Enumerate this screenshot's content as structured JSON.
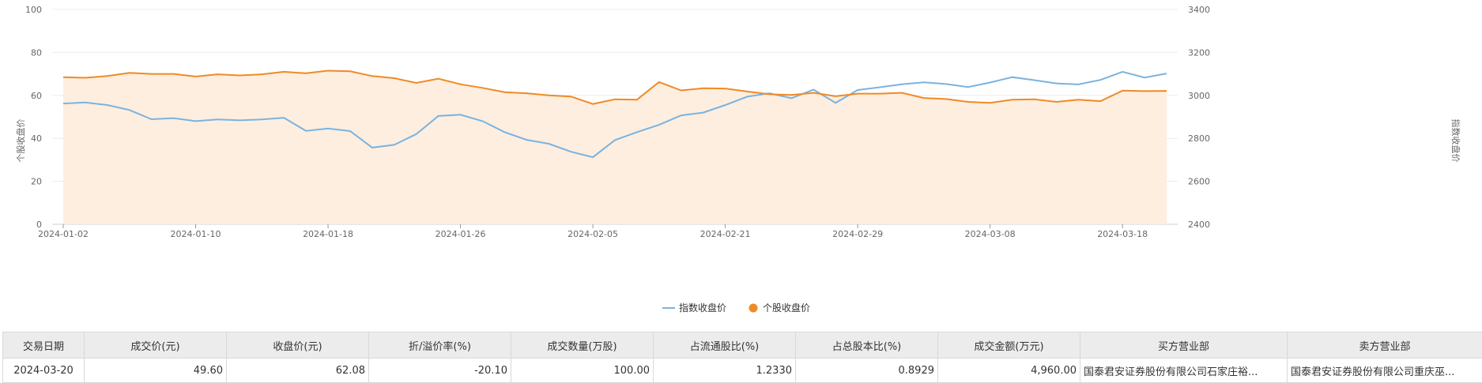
{
  "chart_data": {
    "type": "line",
    "left_axis": {
      "label": "个股收盘价",
      "ylim": [
        0,
        100
      ],
      "ticks": [
        "100",
        "80",
        "60",
        "40",
        "20",
        "0"
      ]
    },
    "right_axis": {
      "label": "指数收盘价",
      "ylim": [
        2400,
        3400
      ],
      "ticks": [
        "3400",
        "3200",
        "3000",
        "2800",
        "2600",
        "2400"
      ]
    },
    "x_tick_labels": [
      "2024-01-02",
      "2024-01-10",
      "2024-01-18",
      "2024-01-26",
      "2024-02-05",
      "2024-02-21",
      "2024-02-29",
      "2024-03-08",
      "2024-03-18"
    ],
    "series": [
      {
        "name": "指数收盘价",
        "axis": "right",
        "color": "#7ab3e0",
        "values": [
          2962,
          2967,
          2955,
          2932,
          2889,
          2894,
          2880,
          2888,
          2884,
          2888,
          2896,
          2835,
          2846,
          2834,
          2757,
          2770,
          2820,
          2904,
          2910,
          2880,
          2829,
          2793,
          2775,
          2738,
          2712,
          2792,
          2829,
          2863,
          2907,
          2920,
          2955,
          2994,
          3010,
          2987,
          3027,
          2965,
          3025,
          3038,
          3052,
          3061,
          3053,
          3039,
          3060,
          3085,
          3071,
          3056,
          3051,
          3072,
          3110,
          3083,
          3102
        ]
      },
      {
        "name": "个股收盘价",
        "axis": "left",
        "color": "#f08a24",
        "values": [
          68.5,
          68.2,
          69.0,
          70.5,
          70.0,
          70.0,
          68.8,
          69.8,
          69.3,
          69.8,
          71.0,
          70.3,
          71.5,
          71.2,
          69.0,
          68.0,
          65.8,
          67.8,
          65.2,
          63.5,
          61.5,
          61.0,
          60.0,
          59.5,
          56.0,
          58.2,
          58.0,
          66.2,
          62.3,
          63.3,
          63.2,
          61.8,
          60.5,
          60.2,
          61.2,
          59.6,
          60.8,
          60.8,
          61.2,
          58.8,
          58.3,
          57.0,
          56.5,
          58.0,
          58.2,
          57.0,
          58.0,
          57.3,
          62.2,
          62.0,
          62.1
        ]
      }
    ],
    "area_under": "个股收盘价",
    "legend_position": "bottom-center"
  },
  "table": {
    "headers": [
      "交易日期",
      "成交价(元)",
      "收盘价(元)",
      "折/溢价率(%)",
      "成交数量(万股)",
      "占流通股比(%)",
      "占总股本比(%)",
      "成交金额(万元)",
      "买方营业部",
      "卖方营业部"
    ],
    "rows": [
      [
        "2024-03-20",
        "49.60",
        "62.08",
        "-20.10",
        "100.00",
        "1.2330",
        "0.8929",
        "4,960.00",
        "国泰君安证券股份有限公司石家庄裕...",
        "国泰君安证券股份有限公司重庆巫..."
      ]
    ]
  }
}
